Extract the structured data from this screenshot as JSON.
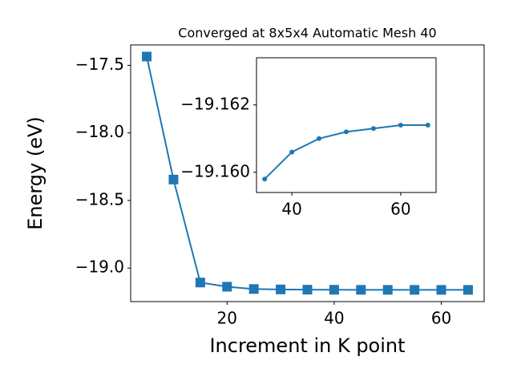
{
  "chart_data": [
    {
      "type": "line",
      "title": "Converged at 8x5x4 Automatic Mesh 40",
      "x_label": "Increment in K point",
      "y_label": "Energy (eV)",
      "x": [
        5,
        10,
        15,
        20,
        25,
        30,
        35,
        40,
        45,
        50,
        55,
        60,
        65
      ],
      "values": [
        -17.435,
        -18.345,
        -19.107,
        -19.138,
        -19.155,
        -19.158,
        -19.1598,
        -19.1606,
        -19.161,
        -19.1612,
        -19.1613,
        -19.1614,
        -19.1614
      ],
      "color": "#1f77b4",
      "xlim": [
        2,
        68
      ],
      "xticks": [
        20,
        40,
        60
      ],
      "ylim": [
        -19.248,
        -17.349
      ],
      "yticks": [
        {
          "value": -17.5,
          "label": "−17.5"
        },
        {
          "value": -18.0,
          "label": "−18.0"
        },
        {
          "value": -18.5,
          "label": "−18.5"
        },
        {
          "value": -19.0,
          "label": "−19.0"
        }
      ]
    },
    {
      "type": "line",
      "x": [
        35,
        40,
        45,
        50,
        55,
        60,
        65
      ],
      "values": [
        -19.1598,
        -19.1606,
        -19.161,
        -19.1612,
        -19.1613,
        -19.1614,
        -19.1614
      ],
      "color": "#1f77b4",
      "xlim": [
        33.5,
        66.5
      ],
      "xticks": [
        40,
        60
      ],
      "ylim": [
        -19.1594,
        -19.1634
      ],
      "yticks": [
        {
          "value": -19.162,
          "label": "−19.162"
        },
        {
          "value": -19.16,
          "label": "−19.160"
        }
      ]
    }
  ]
}
